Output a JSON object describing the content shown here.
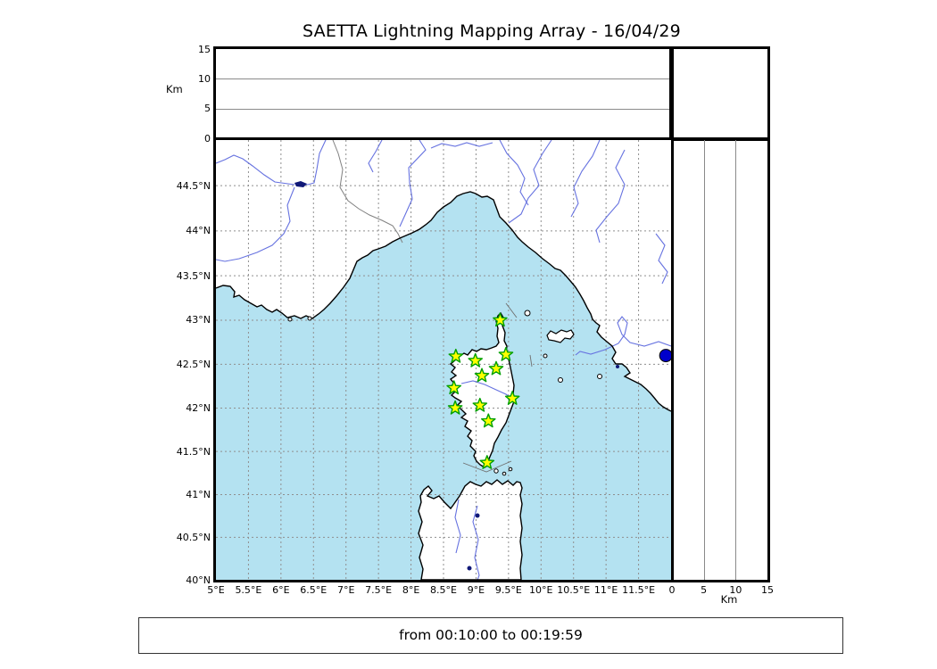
{
  "title": "SAETTA Lightning Mapping Array - 16/04/29",
  "footer_text": "from 00:10:00 to 00:19:59",
  "axis_labels": {
    "alt_top": "Km",
    "alt_right": "Km"
  },
  "colors": {
    "sea": "#b4e2f1",
    "land": "#ffffff",
    "coastline": "#000000",
    "river": "#6672e0",
    "graticule": "#8f8f8f",
    "country_border": "#808080",
    "strait_line": "#707070",
    "lake": "#101878",
    "station_fill": "#ffff00",
    "station_edge": "#00a000",
    "marker": "#0000cc"
  },
  "chart_data": {
    "type": "scatter",
    "title": "SAETTA Lightning Mapping Array - 16/04/29",
    "time_window": "from 00:10:00 to 00:19:59",
    "layout": "lightning-mapping-array-composite",
    "map_panel": {
      "projection": "mercator",
      "region": "Corsica / NW Mediterranean",
      "lon_range": [
        5,
        12
      ],
      "lat_range": [
        40,
        45
      ],
      "grid_style": "dashed",
      "lon_ticks": [
        {
          "label": "5°E",
          "lon": 5
        },
        {
          "label": "5.5°E",
          "lon": 5.5
        },
        {
          "label": "6°E",
          "lon": 6
        },
        {
          "label": "6.5°E",
          "lon": 6.5
        },
        {
          "label": "7°E",
          "lon": 7
        },
        {
          "label": "7.5°E",
          "lon": 7.5
        },
        {
          "label": "8°E",
          "lon": 8
        },
        {
          "label": "8.5°E",
          "lon": 8.5
        },
        {
          "label": "9°E",
          "lon": 9
        },
        {
          "label": "9.5°E",
          "lon": 9.5
        },
        {
          "label": "10°E",
          "lon": 10
        },
        {
          "label": "10.5°E",
          "lon": 10.5
        },
        {
          "label": "11°E",
          "lon": 11
        },
        {
          "label": "11.5°E",
          "lon": 11.5
        }
      ],
      "lat_ticks": [
        {
          "label": "44.5°N",
          "lat": 44.5
        },
        {
          "label": "44°N",
          "lat": 44
        },
        {
          "label": "43.5°N",
          "lat": 43.5
        },
        {
          "label": "43°N",
          "lat": 43
        },
        {
          "label": "42.5°N",
          "lat": 42.5
        },
        {
          "label": "42°N",
          "lat": 42
        },
        {
          "label": "41.5°N",
          "lat": 41.5
        },
        {
          "label": "41°N",
          "lat": 41
        },
        {
          "label": "40.5°N",
          "lat": 40.5
        },
        {
          "label": "40°N",
          "lat": 40
        }
      ],
      "lon_gridlines": [
        5.5,
        6,
        6.5,
        7,
        7.5,
        8,
        8.5,
        9,
        9.5,
        10,
        10.5,
        11,
        11.5
      ],
      "lat_gridlines": [
        44.5,
        44,
        43.5,
        43,
        42.5,
        42,
        41.5,
        41,
        40.5
      ]
    },
    "altitude_panel_top": {
      "axis_label": "Km",
      "range_km": [
        0,
        15
      ],
      "ticks": [
        {
          "label": "0",
          "km": 0
        },
        {
          "label": "5",
          "km": 5
        },
        {
          "label": "10",
          "km": 10
        },
        {
          "label": "15",
          "km": 15
        }
      ],
      "gridlines_km": [
        5,
        10
      ],
      "data_points": []
    },
    "altitude_panel_right": {
      "axis_label": "Km",
      "range_km": [
        0,
        15
      ],
      "ticks": [
        {
          "label": "0",
          "km": 0
        },
        {
          "label": "5",
          "km": 5
        },
        {
          "label": "10",
          "km": 10
        },
        {
          "label": "15",
          "km": 15
        }
      ],
      "gridlines_km": [
        5,
        10
      ],
      "data_points": []
    },
    "histogram_panel": {
      "data_points": []
    },
    "stations": [
      {
        "lon": 9.37,
        "lat": 43.0
      },
      {
        "lon": 8.69,
        "lat": 42.59
      },
      {
        "lon": 8.99,
        "lat": 42.54
      },
      {
        "lon": 9.46,
        "lat": 42.61
      },
      {
        "lon": 9.31,
        "lat": 42.45
      },
      {
        "lon": 9.09,
        "lat": 42.37
      },
      {
        "lon": 8.66,
        "lat": 42.23
      },
      {
        "lon": 9.56,
        "lat": 42.11
      },
      {
        "lon": 9.06,
        "lat": 42.03
      },
      {
        "lon": 8.68,
        "lat": 42.0
      },
      {
        "lon": 9.19,
        "lat": 41.85
      },
      {
        "lon": 9.17,
        "lat": 41.37
      }
    ],
    "point_marker": {
      "lon": 11.92,
      "lat": 42.6,
      "shape": "circle",
      "color": "#0000cc"
    }
  }
}
